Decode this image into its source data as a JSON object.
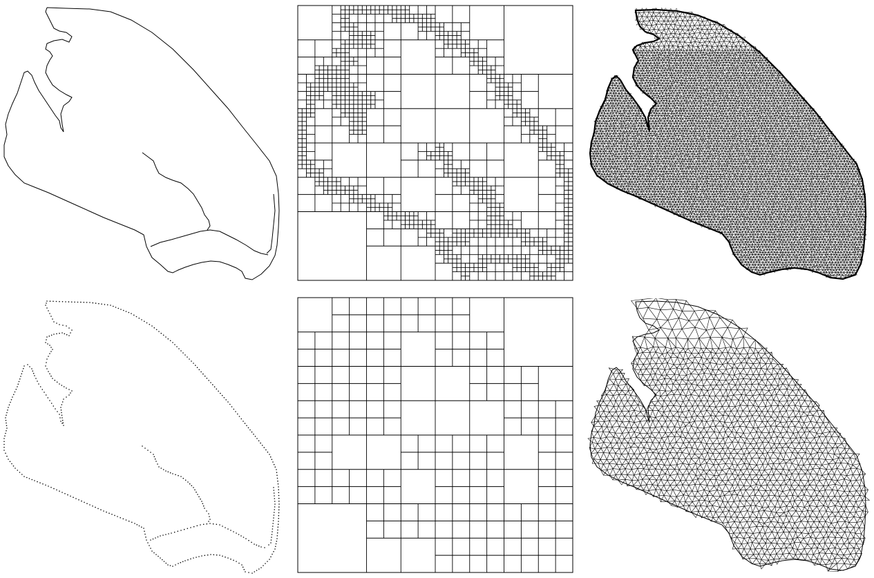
{
  "figure": {
    "layout": "2x3 grid",
    "rows": [
      {
        "resolution": "fine",
        "panels": [
          {
            "kind": "boundary-outline",
            "style": "solid-line"
          },
          {
            "kind": "quadtree",
            "max_depth": 6
          },
          {
            "kind": "triangular-mesh",
            "density": "very-dense"
          }
        ]
      },
      {
        "resolution": "coarse",
        "panels": [
          {
            "kind": "boundary-outline",
            "style": "dotted-points"
          },
          {
            "kind": "quadtree",
            "max_depth": 4
          },
          {
            "kind": "triangular-mesh",
            "density": "medium"
          }
        ]
      }
    ],
    "colors": {
      "ink": "#000000",
      "background": "#ffffff"
    }
  }
}
